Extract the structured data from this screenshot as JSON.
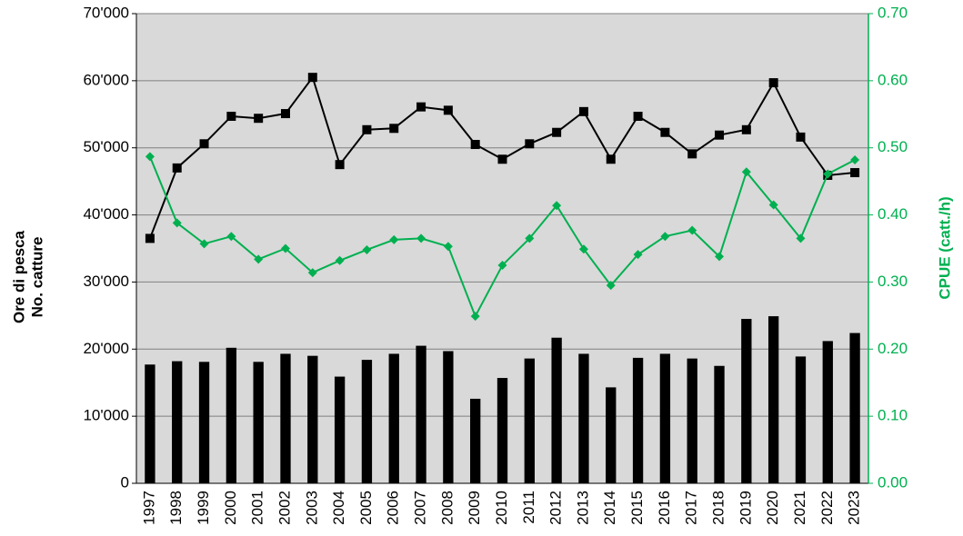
{
  "chart_data": {
    "type": "combo",
    "y_title_lines": [
      "Ore di pesca",
      "No. catture"
    ],
    "y2_title": "CPUE (catt./h)",
    "categories": [
      "1997",
      "1998",
      "1999",
      "2000",
      "2001",
      "2002",
      "2003",
      "2004",
      "2005",
      "2006",
      "2007",
      "2008",
      "2009",
      "2010",
      "2011",
      "2012",
      "2013",
      "2014",
      "2015",
      "2016",
      "2017",
      "2018",
      "2019",
      "2020",
      "2021",
      "2022",
      "2023"
    ],
    "series": [
      {
        "kind": "bar",
        "color": "#000000",
        "values": [
          17700,
          18200,
          18100,
          20200,
          18100,
          19300,
          19000,
          15900,
          18400,
          19300,
          20500,
          19700,
          12600,
          15700,
          18600,
          21700,
          19300,
          14300,
          18700,
          19300,
          18600,
          17500,
          24500,
          24900,
          18900,
          21200,
          22400
        ]
      },
      {
        "kind": "line",
        "marker": "square",
        "color": "#000000",
        "values": [
          36500,
          47000,
          50600,
          54700,
          54400,
          55100,
          60500,
          47500,
          52700,
          52900,
          56100,
          55600,
          50500,
          48300,
          50600,
          52300,
          55400,
          48300,
          54700,
          52300,
          49100,
          51900,
          52700,
          59700,
          51600,
          45900,
          46300
        ]
      },
      {
        "kind": "line",
        "marker": "diamond",
        "color": "#00b050",
        "axis": "y2",
        "values": [
          0.487,
          0.388,
          0.357,
          0.368,
          0.334,
          0.35,
          0.314,
          0.332,
          0.348,
          0.363,
          0.365,
          0.353,
          0.249,
          0.325,
          0.365,
          0.414,
          0.349,
          0.295,
          0.341,
          0.368,
          0.377,
          0.338,
          0.464,
          0.415,
          0.365,
          0.461,
          0.482
        ]
      }
    ],
    "ylim": [
      0,
      70000
    ],
    "yticks": [
      0,
      {
        "value": 10000,
        "label": "10'000"
      },
      {
        "value": 20000,
        "label": "20'000"
      },
      {
        "value": 30000,
        "label": "30'000"
      },
      {
        "value": 40000,
        "label": "40'000"
      },
      {
        "value": 50000,
        "label": "50'000"
      },
      {
        "value": 60000,
        "label": "60'000"
      },
      {
        "value": 70000,
        "label": "70'000"
      }
    ],
    "y2lim": [
      0,
      0.7
    ],
    "y2ticks": [
      {
        "value": 0,
        "label": "0.00"
      },
      {
        "value": 0.1,
        "label": "0.10"
      },
      {
        "value": 0.2,
        "label": "0.20"
      },
      {
        "value": 0.3,
        "label": "0.30"
      },
      {
        "value": 0.4,
        "label": "0.40"
      },
      {
        "value": 0.5,
        "label": "0.50"
      },
      {
        "value": 0.6,
        "label": "0.60"
      },
      {
        "value": 0.7,
        "label": "0.70"
      }
    ],
    "y2color": "#00b050",
    "plot_background": "#d9d9d9",
    "grid": true
  }
}
